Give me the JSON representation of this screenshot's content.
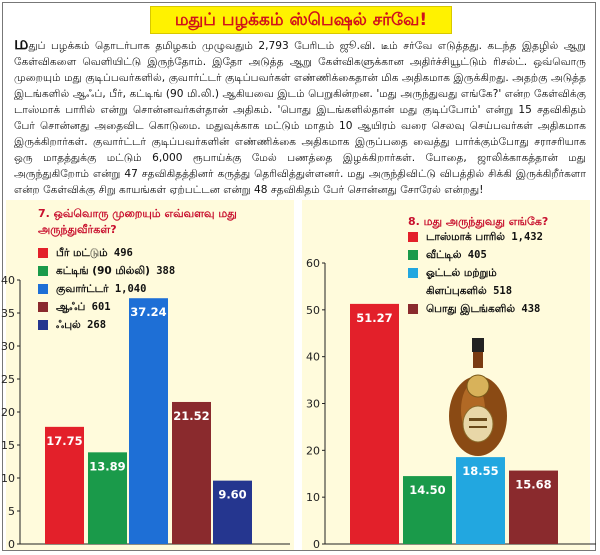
{
  "title": "மதுப் பழக்கம் ஸ்பெஷல் சர்வே!",
  "article": {
    "drop_cap": "ம",
    "body": "துப் பழக்கம் தொடர்பாக தமிழகம் முழுவதும் 2,793 பேரிடம் ஜூ.வி. டீம் சர்வே எடுத்தது. கடந்த இதழில் ஆறு கேள்விகளை வெளியிட்டு இருந்தோம். இதோ அடுத்த ஆறு கேள்விகளுக்கான அதிர்ச்சியூட்டும் ரிசல்ட். ஒவ்வொரு முறையும் மது குடிப்பவர்களில், குவார்ட்டர் குடிப்பவர்கள் எண்ணிக்கைதான் மிக அதிகமாக இருக்கிறது. அதற்கு அடுத்த இடங்களில் ஆஃப், பீர், கட்டிங் (90 மி.லி.) ஆகியவை இடம் பெறுகின்றன. 'மது அருந்துவது எங்கே?' என்ற கேள்விக்கு டாஸ்மாக் பாரில் என்று சொன்னவர்கள்தான் அதிகம். 'பொது இடங்களில்தான் மது குடிப்போம்' என்று 15 சதவிகிதம் பேர் சொன்னது அதைவிட கொடுமை. மதுவுக்காக மட்டும் மாதம் 10 ஆயிரம் வரை செலவு செய்பவர்கள் அதிகமாக இருக்கிறார்கள். குவார்ட்டர் குடிப்பவர்களின் எண்ணிக்கை அதிகமாக இருப்பதை வைத்து பார்க்கும்போது சராசரியாக ஒரு மாதத்துக்கு மட்டும் 6,000 ரூபாய்க்கு மேல் பணத்தை இழக்கிறார்கள். போதை, ஜாலிக்காகத்தான் மது அருந்துகிறோம் என்று 47 சதவிகிதத்தினர் கருத்து தெரிவித்துள்ளனர். மது அருந்திவிட்டு விபத்தில் சிக்கி இருக்கிறீர்களா என்ற கேள்விக்கு சிறு காயங்கள் ஏற்பட்டன என்று 48 சதவிகிதம் பேர் சொன்னது சோரேல் என்றது!"
  },
  "chart_data": [
    {
      "type": "bar",
      "title": "7. ஒவ்வொரு முறையும் எவ்வளவு மது அருந்துவீர்கள்?",
      "categories": [
        "பீர் மட்டும்",
        "கட்டிங் (90 மி.லி.)",
        "குவார்ட்டர்",
        "ஆஃப்",
        "ஃபுல்"
      ],
      "legend_labels": [
        "பீர் மட்டும்",
        "கட்டிங் (90 மில்லி)",
        "குவார்ட்டர்",
        "ஆஃப்",
        "ஃபுல்"
      ],
      "counts": [
        "496",
        "388",
        "1,040",
        "601",
        "268"
      ],
      "values": [
        17.75,
        13.89,
        37.24,
        21.52,
        9.6
      ],
      "value_labels": [
        "17.75",
        "13.89",
        "37.24",
        "21.52",
        "9.60"
      ],
      "colors": [
        "#e3202a",
        "#1a9a4a",
        "#1e6fd6",
        "#8a2a2d",
        "#25368f"
      ],
      "ylim": [
        0,
        40
      ],
      "yticks": [
        "0",
        "5",
        "10",
        "15",
        "20",
        "25",
        "30",
        "35",
        "40"
      ],
      "grid": false,
      "xlabel": "",
      "ylabel": ""
    },
    {
      "type": "bar",
      "title": "8. மது அருந்துவது எங்கே?",
      "categories": [
        "டாஸ்மாக் பாரில்",
        "வீட்டில்",
        "ஓட்டல் மற்றும் கிளப்புகளில்",
        "பொது இடங்களில்"
      ],
      "legend_labels": [
        "டாஸ்மாக் பாரில்",
        "வீட்டில்",
        "ஓட்டல் மற்றும்\nகிளப்புகளில்",
        "பொது இடங்களில்"
      ],
      "counts": [
        "1,432",
        "405",
        "518",
        "438"
      ],
      "values": [
        51.27,
        14.5,
        18.55,
        15.68
      ],
      "value_labels": [
        "51.27",
        "14.50",
        "18.55",
        "15.68"
      ],
      "colors": [
        "#e3202a",
        "#1a9a4a",
        "#22a7e0",
        "#8a2a2d"
      ],
      "ylim": [
        0,
        60
      ],
      "yticks": [
        "0",
        "10",
        "20",
        "30",
        "40",
        "50",
        "60"
      ],
      "grid": false,
      "xlabel": "",
      "ylabel": ""
    }
  ]
}
